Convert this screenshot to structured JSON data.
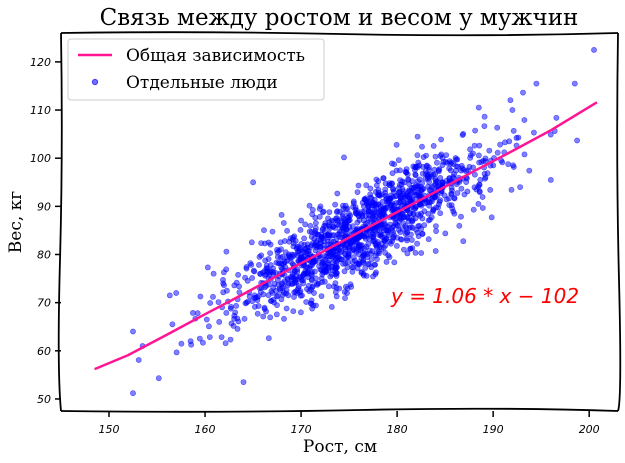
{
  "chart_data": {
    "type": "scatter",
    "title": "Связь между ростом и весом у мужчин",
    "xlabel": "Рост, см",
    "ylabel": "Вес, кг",
    "xlim": [
      145,
      203
    ],
    "ylim": [
      47.5,
      126
    ],
    "xticks": [
      150,
      160,
      170,
      180,
      190,
      200
    ],
    "yticks": [
      50,
      60,
      70,
      80,
      90,
      100,
      110,
      120
    ],
    "grid": false,
    "legend_placement": "top-left",
    "colors": {
      "line": "#ff1493",
      "points": "#0000ff",
      "annotation": "#ff0000"
    },
    "series": [
      {
        "name": "Общая зависимость",
        "kind": "line",
        "x": [
          148.5,
          152,
          156,
          160,
          164,
          168,
          172,
          176,
          180,
          184,
          188,
          192,
          196,
          200.8
        ],
        "y": [
          56.2,
          59.1,
          63.3,
          67.6,
          71.8,
          76.1,
          80.3,
          84.6,
          88.8,
          93.0,
          97.3,
          101.5,
          105.8,
          111.6
        ]
      },
      {
        "name": "Отдельные люди",
        "kind": "scatter",
        "outliers_x": [
          152.5,
          152.5,
          153.5,
          164,
          188.5,
          192,
          194.5,
          196,
          198.5,
          200.5,
          165,
          157,
          158.5
        ],
        "outliers_y": [
          51.2,
          64,
          61,
          53.5,
          110.5,
          110,
          115.5,
          95.5,
          115.5,
          122.5,
          95,
          72,
          62
        ]
      }
    ],
    "annotation": "y = 1.06 * x − 102"
  }
}
